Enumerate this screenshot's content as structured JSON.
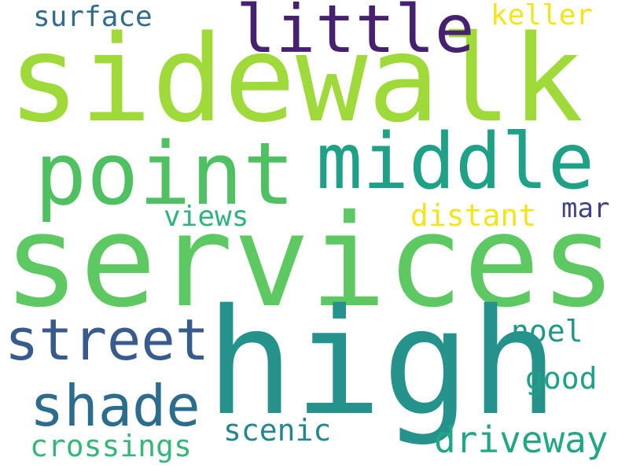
{
  "wordcloud": {
    "words": [
      {
        "text": "sidewalk",
        "color": "#9fd93a"
      },
      {
        "text": "services",
        "color": "#5ec962"
      },
      {
        "text": "high",
        "color": "#25928c"
      },
      {
        "text": "point",
        "color": "#4fc163"
      },
      {
        "text": "middle",
        "color": "#1fa187"
      },
      {
        "text": "little",
        "color": "#46216f"
      },
      {
        "text": "street",
        "color": "#375b8d"
      },
      {
        "text": "shade",
        "color": "#2c6d8e"
      },
      {
        "text": "surface",
        "color": "#2f6c8e"
      },
      {
        "text": "keller",
        "color": "#f2e51e"
      },
      {
        "text": "views",
        "color": "#2fb47c"
      },
      {
        "text": "distant",
        "color": "#f2e51e"
      },
      {
        "text": "mar",
        "color": "#404387"
      },
      {
        "text": "noel",
        "color": "#1f978b"
      },
      {
        "text": "good",
        "color": "#1fa187"
      },
      {
        "text": "scenic",
        "color": "#24878e"
      },
      {
        "text": "driveway",
        "color": "#22a785"
      },
      {
        "text": "crossings",
        "color": "#35b779"
      }
    ]
  }
}
